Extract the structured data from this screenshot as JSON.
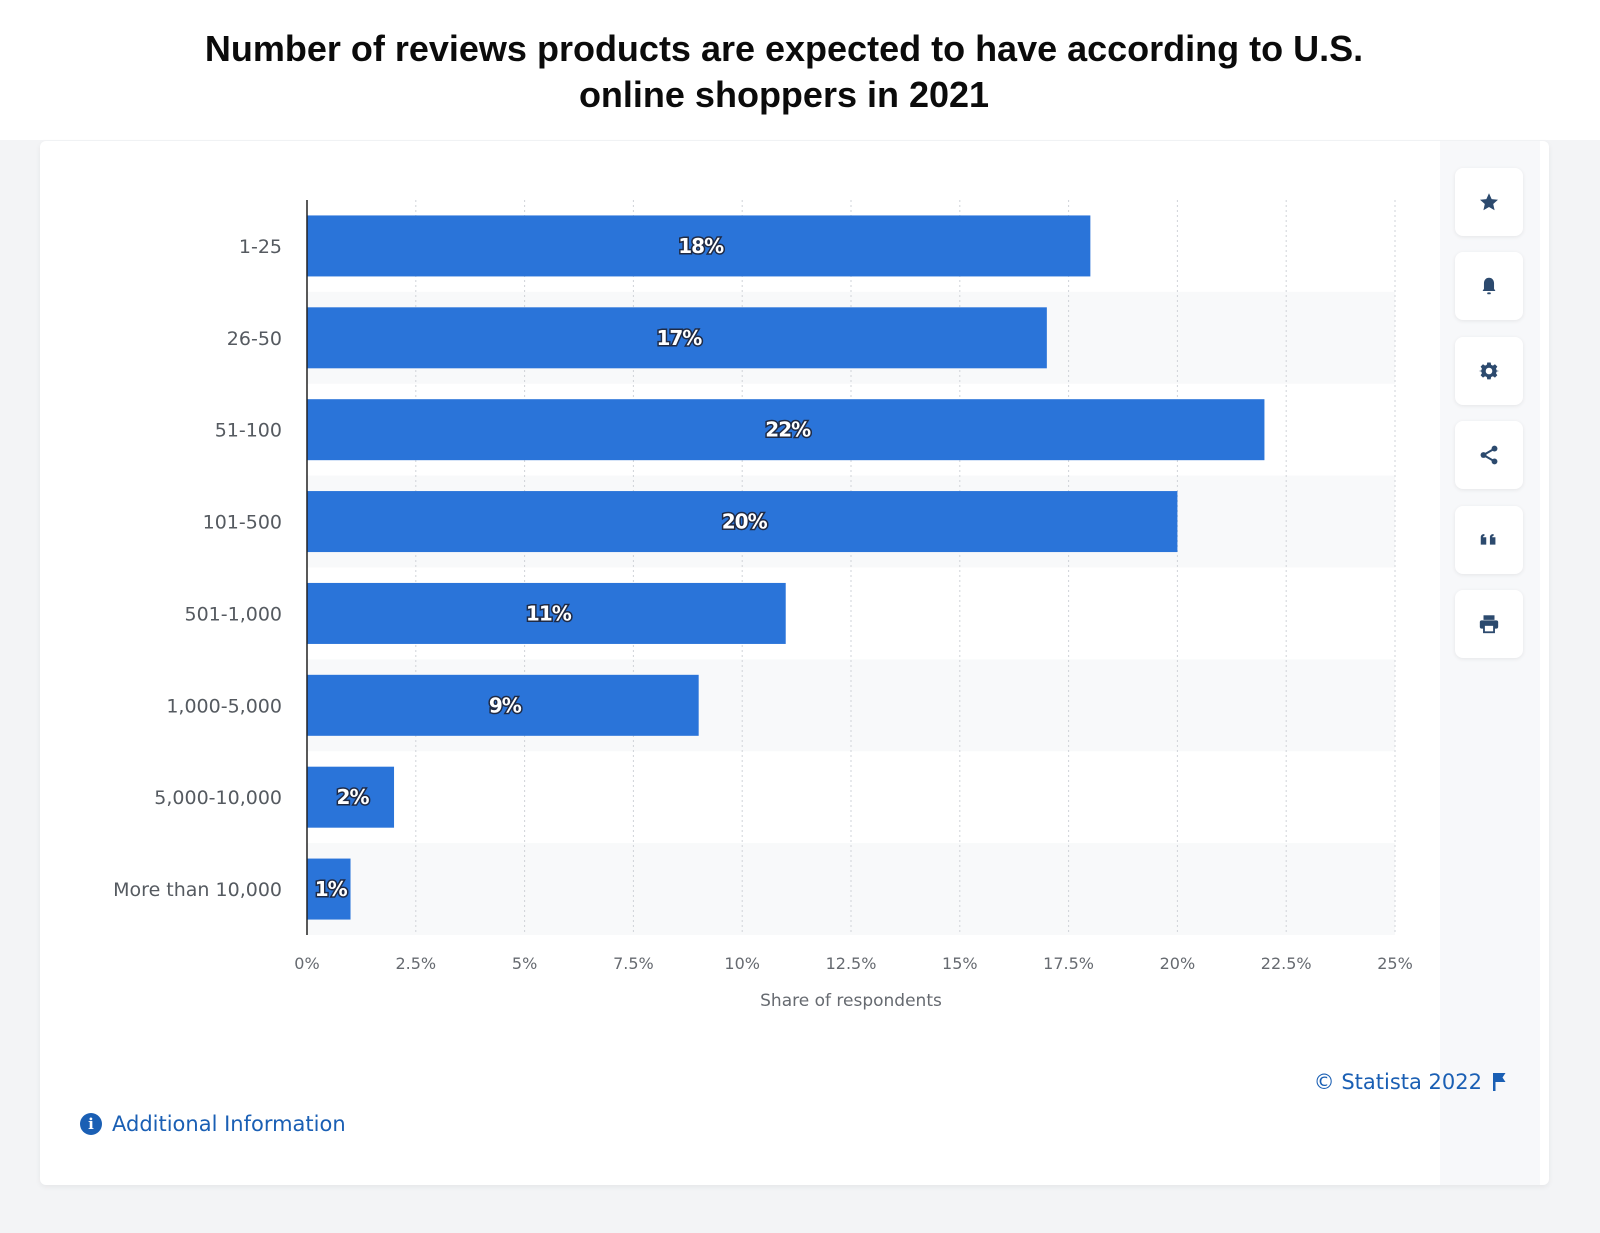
{
  "title": "Number of reviews products are expected to have according to U.S. online shoppers in 2021",
  "title_lines": [
    "Number of reviews products are expected to have according to U.S.",
    "online shoppers in 2021"
  ],
  "colors": {
    "bar": "#2a74d9",
    "band": "#f8f9fa",
    "accent": "#1a5fb4",
    "icon": "#2c4a6e"
  },
  "toolbar": [
    {
      "name": "favorite-button",
      "icon": "star-icon"
    },
    {
      "name": "notification-button",
      "icon": "bell-icon"
    },
    {
      "name": "settings-button",
      "icon": "gear-icon"
    },
    {
      "name": "share-button",
      "icon": "share-icon"
    },
    {
      "name": "cite-button",
      "icon": "quote-icon"
    },
    {
      "name": "print-button",
      "icon": "printer-icon"
    }
  ],
  "footer": {
    "copyright": "© Statista 2022",
    "additional_info": "Additional Information"
  },
  "chart_data": {
    "type": "bar",
    "orientation": "horizontal",
    "title": "Number of reviews products are expected to have according to U.S. online shoppers in 2021",
    "categories": [
      "1-25",
      "26-50",
      "51-100",
      "101-500",
      "501-1,000",
      "1,000-5,000",
      "5,000-10,000",
      "More than 10,000"
    ],
    "values": [
      18,
      17,
      22,
      20,
      11,
      9,
      2,
      1
    ],
    "value_labels": [
      "18%",
      "17%",
      "22%",
      "20%",
      "11%",
      "9%",
      "2%",
      "1%"
    ],
    "xlabel": "Share of respondents",
    "ylabel": "",
    "xlim": [
      0,
      25
    ],
    "xticks": [
      0,
      2.5,
      5,
      7.5,
      10,
      12.5,
      15,
      17.5,
      20,
      22.5,
      25
    ],
    "xtick_labels": [
      "0%",
      "2.5%",
      "5%",
      "7.5%",
      "10%",
      "12.5%",
      "15%",
      "17.5%",
      "20%",
      "22.5%",
      "25%"
    ],
    "grid": true,
    "legend": "none"
  }
}
